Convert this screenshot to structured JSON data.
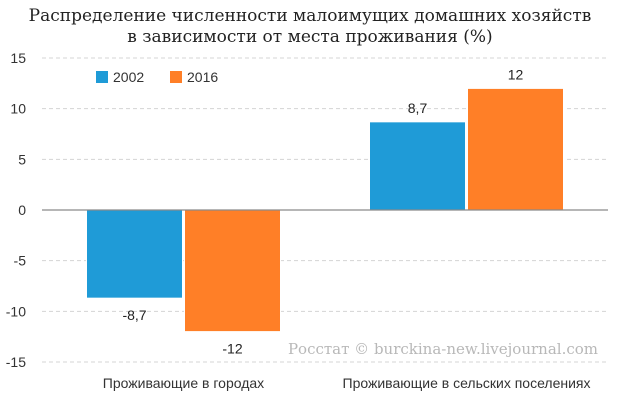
{
  "chart_data": {
    "type": "bar",
    "title_lines": [
      "Распределение численности малоимущих домашних хозяйств",
      "в зависимости от места проживания (%)"
    ],
    "categories": [
      "Проживающие в городах",
      "Проживающие  в сельских поселениях"
    ],
    "series": [
      {
        "name": "2002",
        "values": [
          -8.7,
          8.7
        ],
        "labels": [
          "-8,7",
          "8,7"
        ],
        "color": "#1f9bd7"
      },
      {
        "name": "2016",
        "values": [
          -12,
          12
        ],
        "labels": [
          "-12",
          "12"
        ],
        "color": "#ff7f27"
      }
    ],
    "ylim": [
      -15,
      15
    ],
    "yticks": [
      15,
      10,
      5,
      0,
      -5,
      -10,
      -15
    ],
    "grid": true,
    "legend_position": "top-left",
    "watermark": "Росстат © burckina-new.livejournal.com"
  }
}
